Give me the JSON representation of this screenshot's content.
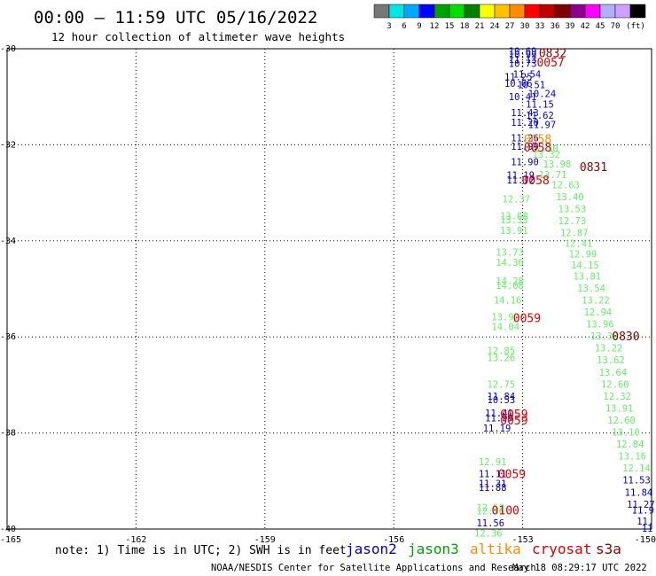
{
  "header": {
    "title": "00:00 – 11:59 UTC 05/16/2022",
    "subtitle": "12 hour collection of altimeter wave heights"
  },
  "colorbar": {
    "colors": [
      "#777777",
      "#00e5e5",
      "#00a8ff",
      "#0000ff",
      "#00a000",
      "#00e000",
      "#008000",
      "#ffff00",
      "#ffc000",
      "#ff8c00",
      "#ff0000",
      "#c00000",
      "#800000",
      "#8c008c",
      "#ff00ff",
      "#b0b0ff",
      "#d0a0ff",
      "#000000"
    ],
    "labels": [
      "3",
      "6",
      "9",
      "12",
      "15",
      "18",
      "21",
      "24",
      "27",
      "30",
      "33",
      "36",
      "39",
      "42",
      "45",
      "70",
      "(ft)"
    ]
  },
  "footer": {
    "note": "note: 1) Time is in UTC; 2) SWH is in feet",
    "legend": [
      {
        "name": "jason2",
        "color": "#0000cc"
      },
      {
        "name": "jason3",
        "color": "#00a000"
      },
      {
        "name": "altika",
        "color": "#ff8c00"
      },
      {
        "name": "cryosat",
        "color": "#dd0000"
      },
      {
        "name": "s3a",
        "color": "#880000"
      }
    ],
    "credit": "NOAA/NESDIS Center for Satellite Applications and Research",
    "timestamp": "May 18 08:29:17 UTC 2022"
  },
  "colors": {
    "jason2": "#0000cc",
    "light_green": "#66ee66",
    "cryosat_red": "#dd0000",
    "s3a_darkred": "#880000",
    "altika": "#ff8c00"
  },
  "chart_data": {
    "type": "scatter",
    "title": "00:00 – 11:59 UTC 05/16/2022",
    "subtitle": "12 hour collection of altimeter wave heights",
    "xlim": [
      -165,
      -150
    ],
    "ylim": [
      -40,
      -30
    ],
    "x_ticks": [
      "-165",
      "-162",
      "-159",
      "-156",
      "-153",
      "-150"
    ],
    "y_ticks": [
      "-30",
      "-32",
      "-34",
      "-36",
      "-38",
      "-40"
    ],
    "grid": true,
    "units": "ft",
    "points": [
      {
        "lon": -153.0,
        "lat": -30.05,
        "text": "10.69",
        "color": "#0000cc"
      },
      {
        "lon": -153.0,
        "lat": -30.12,
        "text": "10.99",
        "color": "#0000cc"
      },
      {
        "lon": -153.0,
        "lat": -30.22,
        "text": "11.13",
        "color": "#0000cc"
      },
      {
        "lon": -153.0,
        "lat": -30.3,
        "text": "10.73",
        "color": "#0000cc"
      },
      {
        "lon": -152.9,
        "lat": -30.53,
        "text": "11.54",
        "color": "#0000cc"
      },
      {
        "lon": -153.1,
        "lat": -30.58,
        "text": "11.25",
        "color": "#0000cc"
      },
      {
        "lon": -153.1,
        "lat": -30.72,
        "text": "10.66",
        "color": "#0000cc"
      },
      {
        "lon": -152.8,
        "lat": -30.75,
        "text": "10.51",
        "color": "#0000cc"
      },
      {
        "lon": -152.55,
        "lat": -30.93,
        "text": "10.24",
        "color": "#0000cc"
      },
      {
        "lon": -153.0,
        "lat": -31.0,
        "text": "10.41",
        "color": "#0000cc"
      },
      {
        "lon": -152.6,
        "lat": -31.15,
        "text": "11.15",
        "color": "#0000cc"
      },
      {
        "lon": -152.95,
        "lat": -31.33,
        "text": "11.43",
        "color": "#0000cc"
      },
      {
        "lon": -152.6,
        "lat": -31.38,
        "text": "11.62",
        "color": "#0000cc"
      },
      {
        "lon": -152.95,
        "lat": -31.53,
        "text": "11.20",
        "color": "#0000cc"
      },
      {
        "lon": -152.55,
        "lat": -31.58,
        "text": "11.97",
        "color": "#0000cc"
      },
      {
        "lon": -152.95,
        "lat": -31.85,
        "text": "11.26",
        "color": "#0000cc"
      },
      {
        "lon": -152.95,
        "lat": -32.03,
        "text": "11.99",
        "color": "#0000cc"
      },
      {
        "lon": -152.5,
        "lat": -32.08,
        "text": "12.30",
        "color": "#66ee66"
      },
      {
        "lon": -152.45,
        "lat": -32.2,
        "text": "13.32",
        "color": "#66ee66"
      },
      {
        "lon": -152.95,
        "lat": -32.35,
        "text": "11.90",
        "color": "#0000cc"
      },
      {
        "lon": -152.2,
        "lat": -32.4,
        "text": "13.98",
        "color": "#66ee66"
      },
      {
        "lon": -152.3,
        "lat": -32.62,
        "text": "13.71",
        "color": "#66ee66"
      },
      {
        "lon": -153.05,
        "lat": -32.63,
        "text": "11.19",
        "color": "#0000cc"
      },
      {
        "lon": -153.05,
        "lat": -32.73,
        "text": "11.72",
        "color": "#0000cc"
      },
      {
        "lon": -152.0,
        "lat": -32.83,
        "text": "12.63",
        "color": "#66ee66"
      },
      {
        "lon": -153.15,
        "lat": -33.13,
        "text": "12.37",
        "color": "#66ee66"
      },
      {
        "lon": -151.9,
        "lat": -33.08,
        "text": "13.40",
        "color": "#66ee66"
      },
      {
        "lon": -151.85,
        "lat": -33.33,
        "text": "13.53",
        "color": "#66ee66"
      },
      {
        "lon": -153.2,
        "lat": -33.48,
        "text": "13.08",
        "color": "#66ee66"
      },
      {
        "lon": -153.2,
        "lat": -33.56,
        "text": "13.33",
        "color": "#66ee66"
      },
      {
        "lon": -151.85,
        "lat": -33.58,
        "text": "12.73",
        "color": "#66ee66"
      },
      {
        "lon": -153.2,
        "lat": -33.78,
        "text": "13.91",
        "color": "#66ee66"
      },
      {
        "lon": -151.8,
        "lat": -33.83,
        "text": "12.87",
        "color": "#66ee66"
      },
      {
        "lon": -151.7,
        "lat": -34.05,
        "text": "12.41",
        "color": "#66ee66"
      },
      {
        "lon": -153.3,
        "lat": -34.23,
        "text": "13.73",
        "color": "#66ee66"
      },
      {
        "lon": -151.6,
        "lat": -34.27,
        "text": "12.99",
        "color": "#66ee66"
      },
      {
        "lon": -153.3,
        "lat": -34.45,
        "text": "14.36",
        "color": "#66ee66"
      },
      {
        "lon": -151.55,
        "lat": -34.5,
        "text": "14.15",
        "color": "#66ee66"
      },
      {
        "lon": -151.5,
        "lat": -34.73,
        "text": "13.81",
        "color": "#66ee66"
      },
      {
        "lon": -153.3,
        "lat": -34.83,
        "text": "14.28",
        "color": "#66ee66"
      },
      {
        "lon": -153.3,
        "lat": -34.93,
        "text": "14.08",
        "color": "#66ee66"
      },
      {
        "lon": -151.4,
        "lat": -34.98,
        "text": "13.54",
        "color": "#66ee66"
      },
      {
        "lon": -153.35,
        "lat": -35.23,
        "text": "14.16",
        "color": "#66ee66"
      },
      {
        "lon": -151.3,
        "lat": -35.23,
        "text": "13.22",
        "color": "#66ee66"
      },
      {
        "lon": -151.25,
        "lat": -35.48,
        "text": "12.94",
        "color": "#66ee66"
      },
      {
        "lon": -153.4,
        "lat": -35.58,
        "text": "13.92",
        "color": "#66ee66"
      },
      {
        "lon": -151.2,
        "lat": -35.73,
        "text": "13.96",
        "color": "#66ee66"
      },
      {
        "lon": -153.4,
        "lat": -35.78,
        "text": "14.04",
        "color": "#66ee66"
      },
      {
        "lon": -151.1,
        "lat": -35.98,
        "text": "13.39",
        "color": "#66ee66"
      },
      {
        "lon": -151.0,
        "lat": -36.23,
        "text": "13.22",
        "color": "#66ee66"
      },
      {
        "lon": -153.5,
        "lat": -36.28,
        "text": "12.85",
        "color": "#66ee66"
      },
      {
        "lon": -153.5,
        "lat": -36.43,
        "text": "13.26",
        "color": "#66ee66"
      },
      {
        "lon": -150.95,
        "lat": -36.48,
        "text": "13.62",
        "color": "#66ee66"
      },
      {
        "lon": -150.9,
        "lat": -36.73,
        "text": "13.64",
        "color": "#66ee66"
      },
      {
        "lon": -150.85,
        "lat": -36.98,
        "text": "12.60",
        "color": "#66ee66"
      },
      {
        "lon": -153.5,
        "lat": -36.98,
        "text": "12.75",
        "color": "#66ee66"
      },
      {
        "lon": -153.5,
        "lat": -37.23,
        "text": "11.84",
        "color": "#0000cc"
      },
      {
        "lon": -150.8,
        "lat": -37.23,
        "text": "12.32",
        "color": "#66ee66"
      },
      {
        "lon": -153.5,
        "lat": -37.31,
        "text": "10.53",
        "color": "#0000cc"
      },
      {
        "lon": -150.75,
        "lat": -37.48,
        "text": "13.91",
        "color": "#66ee66"
      },
      {
        "lon": -153.55,
        "lat": -37.58,
        "text": "11.41",
        "color": "#0000cc"
      },
      {
        "lon": -153.55,
        "lat": -37.68,
        "text": "11.99",
        "color": "#0000cc"
      },
      {
        "lon": -150.7,
        "lat": -37.73,
        "text": "12.60",
        "color": "#66ee66"
      },
      {
        "lon": -153.6,
        "lat": -37.9,
        "text": "11.19",
        "color": "#0000cc"
      },
      {
        "lon": -150.6,
        "lat": -37.98,
        "text": "13.10",
        "color": "#66ee66"
      },
      {
        "lon": -150.5,
        "lat": -38.23,
        "text": "12.84",
        "color": "#66ee66"
      },
      {
        "lon": -150.45,
        "lat": -38.48,
        "text": "13.16",
        "color": "#66ee66"
      },
      {
        "lon": -153.7,
        "lat": -38.6,
        "text": "12.91",
        "color": "#66ee66"
      },
      {
        "lon": -150.35,
        "lat": -38.73,
        "text": "12.14",
        "color": "#66ee66"
      },
      {
        "lon": -153.7,
        "lat": -38.85,
        "text": "11.11",
        "color": "#0000cc"
      },
      {
        "lon": -150.35,
        "lat": -38.98,
        "text": "11.53",
        "color": "#0000cc"
      },
      {
        "lon": -153.7,
        "lat": -39.05,
        "text": "11.31",
        "color": "#0000cc"
      },
      {
        "lon": -153.7,
        "lat": -39.13,
        "text": "11.88",
        "color": "#0000cc"
      },
      {
        "lon": -150.3,
        "lat": -39.23,
        "text": "11.84",
        "color": "#0000cc"
      },
      {
        "lon": -150.25,
        "lat": -39.48,
        "text": "11.27",
        "color": "#0000cc"
      },
      {
        "lon": -153.75,
        "lat": -39.55,
        "text": "12.52",
        "color": "#66ee66"
      },
      {
        "lon": -153.75,
        "lat": -39.62,
        "text": "12.36",
        "color": "#66ee66"
      },
      {
        "lon": -150.2,
        "lat": -39.6,
        "text": "11.9",
        "color": "#0000cc"
      },
      {
        "lon": -153.75,
        "lat": -39.87,
        "text": "11.56",
        "color": "#0000cc"
      },
      {
        "lon": -150.15,
        "lat": -39.83,
        "text": "11.",
        "color": "#0000cc"
      },
      {
        "lon": -153.8,
        "lat": -40.08,
        "text": "12.36",
        "color": "#66ee66"
      },
      {
        "lon": -150.1,
        "lat": -39.98,
        "text": "11",
        "color": "#0000cc"
      }
    ],
    "time_labels": [
      {
        "lon": -152.3,
        "lat": -30.08,
        "text": "0832",
        "color": "#880000"
      },
      {
        "lon": -152.35,
        "lat": -30.28,
        "text": "0057",
        "color": "#dd0000"
      },
      {
        "lon": -152.65,
        "lat": -31.87,
        "text": "0058",
        "color": "#ff8c00"
      },
      {
        "lon": -152.65,
        "lat": -32.05,
        "text": "0058",
        "color": "#dd0000"
      },
      {
        "lon": -151.35,
        "lat": -32.45,
        "text": "0831",
        "color": "#880000"
      },
      {
        "lon": -152.7,
        "lat": -32.73,
        "text": "0058",
        "color": "#dd0000"
      },
      {
        "lon": -152.9,
        "lat": -35.6,
        "text": "0059",
        "color": "#dd0000"
      },
      {
        "lon": -150.6,
        "lat": -35.98,
        "text": "0830",
        "color": "#880000"
      },
      {
        "lon": -153.2,
        "lat": -37.6,
        "text": "0059",
        "color": "#dd0000"
      },
      {
        "lon": -153.2,
        "lat": -37.73,
        "text": "0059",
        "color": "#dd0000"
      },
      {
        "lon": -153.25,
        "lat": -38.85,
        "text": "0059",
        "color": "#dd0000"
      },
      {
        "lon": -153.4,
        "lat": -39.6,
        "text": "0100",
        "color": "#dd0000"
      }
    ]
  }
}
